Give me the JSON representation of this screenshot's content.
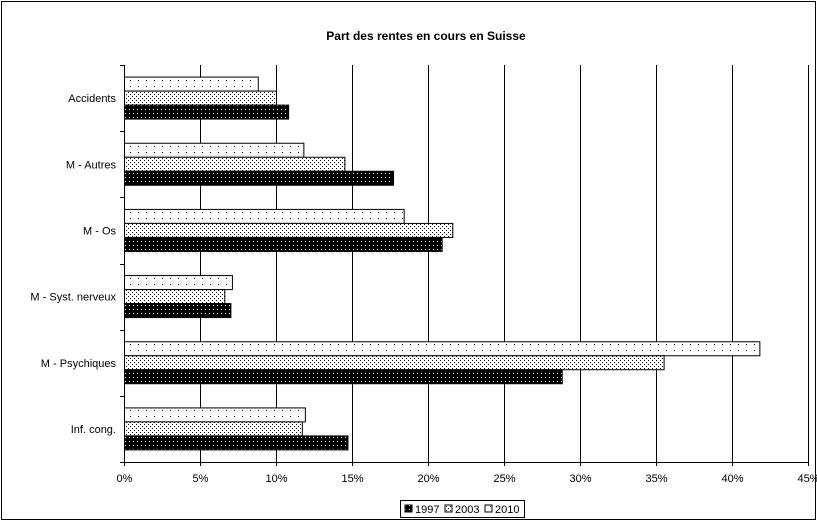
{
  "chart_data": {
    "type": "bar",
    "orientation": "horizontal",
    "title": "Part des rentes en cours en Suisse",
    "xlabel": "",
    "ylabel": "",
    "categories": [
      "Accidents",
      "M - Autres",
      "M - Os",
      "M - Syst. nerveux",
      "M - Psychiques",
      "Inf. cong."
    ],
    "series": [
      {
        "name": "1997",
        "values": [
          10.8,
          17.7,
          20.9,
          7.0,
          28.8,
          14.7
        ],
        "pattern": "dense-dots-dark"
      },
      {
        "name": "2003",
        "values": [
          10.0,
          14.5,
          21.6,
          6.6,
          35.5,
          11.7
        ],
        "pattern": "checker-light"
      },
      {
        "name": "2010",
        "values": [
          8.8,
          11.8,
          18.4,
          7.1,
          41.8,
          11.9
        ],
        "pattern": "sparse-dots-light"
      }
    ],
    "xlim": [
      0,
      45
    ],
    "xticks": [
      "0%",
      "5%",
      "10%",
      "15%",
      "20%",
      "25%",
      "30%",
      "35%",
      "40%",
      "45%"
    ],
    "grid": true,
    "legend_position": "bottom"
  }
}
